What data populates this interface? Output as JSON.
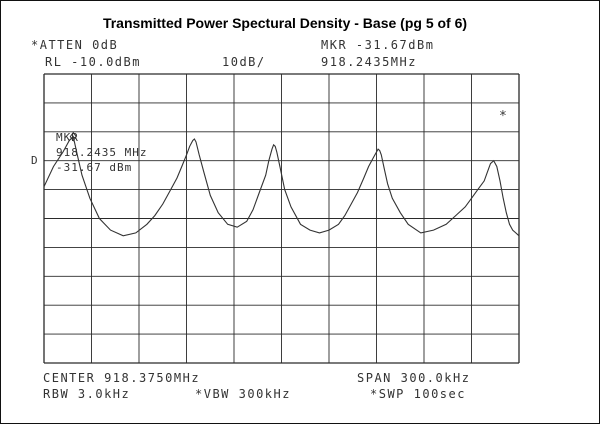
{
  "title": "Transmitted Power Spectural Density  - Base (pg 5 of  6)",
  "header": {
    "atten": "*ATTEN 0dB",
    "ref_level": "RL -10.0dBm",
    "scale": "10dB/",
    "marker_level": "MKR -31.67dBm",
    "marker_freq": "918.2435MHz"
  },
  "marker_box": {
    "label": "MKR",
    "freq": "918.2435 MHz",
    "level": "-31.67 dBm"
  },
  "left_mark": "D",
  "right_mark": "*",
  "footer": {
    "center": "CENTER 918.3750MHz",
    "span": "SPAN 300.0kHz",
    "rbw": "RBW 3.0kHz",
    "vbw": "*VBW 300kHz",
    "sweep": "*SWP 100sec"
  },
  "colors": {
    "trace": "#333333",
    "grid": "#2a2a2a"
  },
  "chart_data": {
    "type": "line",
    "x_range_khz": [
      -150,
      150
    ],
    "ylim": [
      -110,
      -10
    ],
    "grid": true,
    "marker": {
      "x_khz": -131.5,
      "y_dbm": -31.67
    },
    "series": [
      {
        "x": [
          -150,
          -144,
          -138,
          -134,
          -132,
          -131.5,
          -131,
          -129,
          -126,
          -121,
          -115,
          -108,
          -100,
          -92,
          -85,
          -80,
          -75,
          -70,
          -66,
          -63,
          -60,
          -58,
          -56,
          -55,
          -54,
          -52,
          -49,
          -45,
          -40,
          -34,
          -28,
          -22,
          -18,
          -14,
          -10,
          -8,
          -6,
          -5,
          -4,
          -3,
          -1,
          2,
          6,
          12,
          18,
          24,
          30,
          36,
          40,
          44,
          48,
          52,
          55,
          58,
          60,
          61,
          62,
          63,
          65,
          67,
          70,
          75,
          80,
          88,
          96,
          104,
          110,
          116,
          120,
          124,
          128,
          130,
          132,
          134,
          136,
          138,
          140,
          142,
          144,
          146,
          148,
          150
        ],
        "y": [
          -49,
          -42,
          -37,
          -33,
          -31.9,
          -31.67,
          -33,
          -38,
          -45,
          -53,
          -60,
          -64,
          -66,
          -65,
          -62,
          -59,
          -55,
          -50,
          -46,
          -42,
          -38,
          -35,
          -33,
          -32.5,
          -33.5,
          -38,
          -44,
          -52,
          -58,
          -62,
          -63,
          -61,
          -57,
          -51,
          -45,
          -40,
          -36,
          -34.5,
          -35,
          -37,
          -42,
          -50,
          -56,
          -62,
          -64,
          -65,
          -64,
          -62,
          -59,
          -55,
          -51,
          -46,
          -42,
          -39,
          -37,
          -36,
          -36.5,
          -38,
          -43,
          -48,
          -53,
          -58,
          -62,
          -65,
          -64,
          -62,
          -59,
          -56,
          -53,
          -50,
          -47,
          -44,
          -41,
          -40,
          -42,
          -47,
          -53,
          -58,
          -62,
          -64,
          -65,
          -66
        ]
      }
    ]
  }
}
